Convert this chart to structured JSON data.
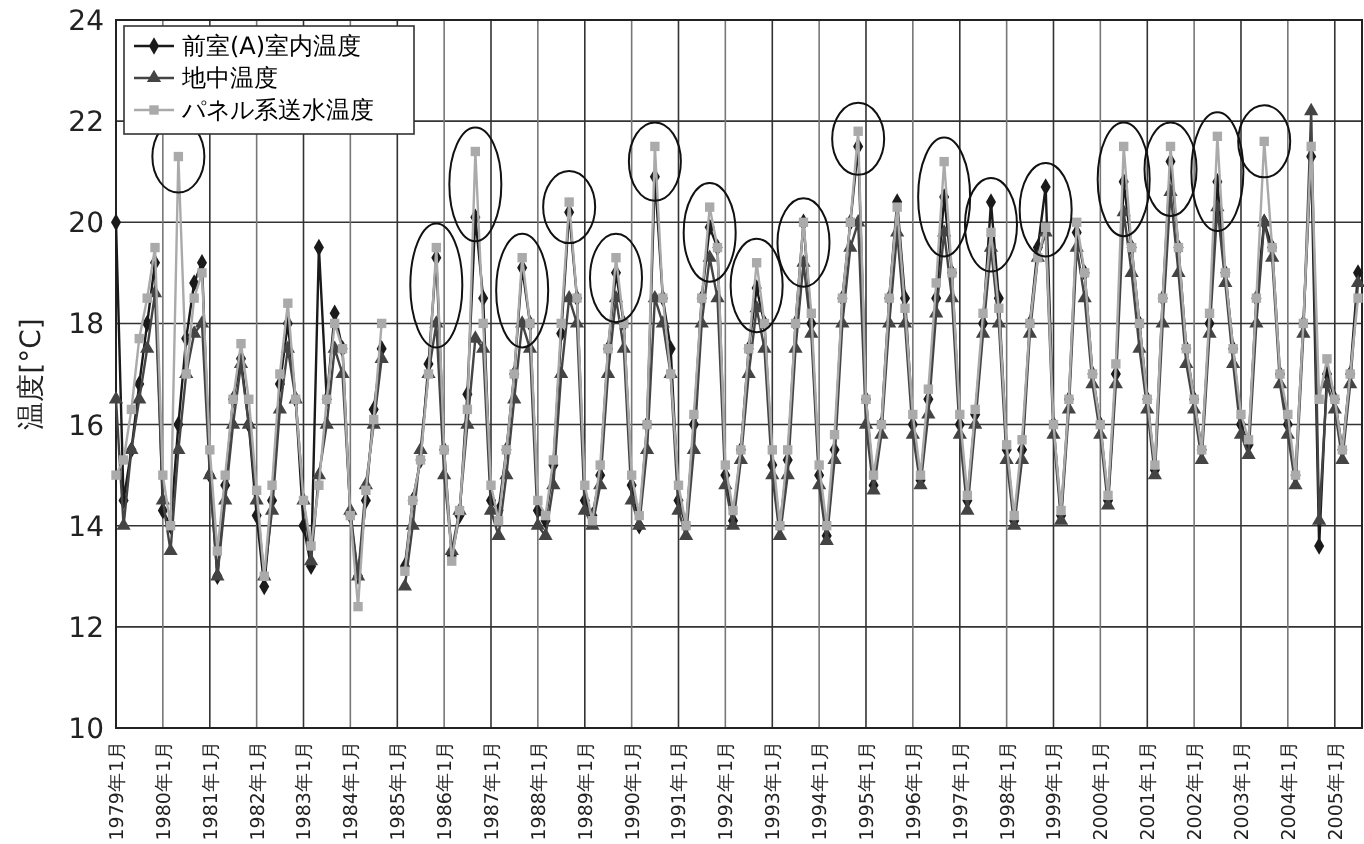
{
  "chart_data": {
    "type": "line",
    "ylabel": "温度[°C]",
    "ylim": [
      10,
      24
    ],
    "yticks": [
      10,
      12,
      14,
      16,
      18,
      20,
      22,
      24
    ],
    "xlim": [
      "1979-01",
      "2005-08"
    ],
    "xticks": [
      {
        "value": "1979-01",
        "label": "1979年1月"
      },
      {
        "value": "1980-01",
        "label": "1980年1月"
      },
      {
        "value": "1981-01",
        "label": "1981年1月"
      },
      {
        "value": "1982-01",
        "label": "1982年1月"
      },
      {
        "value": "1983-01",
        "label": "1983年1月"
      },
      {
        "value": "1984-01",
        "label": "1984年1月"
      },
      {
        "value": "1985-01",
        "label": "1985年1月"
      },
      {
        "value": "1986-01",
        "label": "1986年1月"
      },
      {
        "value": "1987-01",
        "label": "1987年1月"
      },
      {
        "value": "1988-01",
        "label": "1988年1月"
      },
      {
        "value": "1989-01",
        "label": "1989年1月"
      },
      {
        "value": "1990-01",
        "label": "1990年1月"
      },
      {
        "value": "1991-01",
        "label": "1991年1月"
      },
      {
        "value": "1992-01",
        "label": "1992年1月"
      },
      {
        "value": "1993-01",
        "label": "1993年1月"
      },
      {
        "value": "1994-01",
        "label": "1994年1月"
      },
      {
        "value": "1995-01",
        "label": "1995年1月"
      },
      {
        "value": "1996-01",
        "label": "1996年1月"
      },
      {
        "value": "1997-01",
        "label": "1997年1月"
      },
      {
        "value": "1998-01",
        "label": "1998年1月"
      },
      {
        "value": "1999-01",
        "label": "1999年1月"
      },
      {
        "value": "2000-01",
        "label": "2000年1月"
      },
      {
        "value": "2001-01",
        "label": "2001年1月"
      },
      {
        "value": "2002-01",
        "label": "2002年1月"
      },
      {
        "value": "2003-01",
        "label": "2003年1月"
      },
      {
        "value": "2004-01",
        "label": "2004年1月"
      },
      {
        "value": "2005-01",
        "label": "2005年1月"
      }
    ],
    "grid": true,
    "legend": "top left",
    "line_style": "solid",
    "x": [
      "1979-01",
      "1979-03",
      "1979-05",
      "1979-07",
      "1979-09",
      "1979-11",
      "1980-01",
      "1980-03",
      "1980-05",
      "1980-07",
      "1980-09",
      "1980-11",
      "1981-01",
      "1981-03",
      "1981-05",
      "1981-07",
      "1981-09",
      "1981-11",
      "1982-01",
      "1982-03",
      "1982-05",
      "1982-07",
      "1982-09",
      "1982-11",
      "1983-01",
      "1983-03",
      "1983-05",
      "1983-07",
      "1983-09",
      "1983-11",
      "1984-01",
      "1984-03",
      "1984-05",
      "1984-07",
      "1984-09",
      "1984-11",
      "1985-01",
      "1985-03",
      "1985-05",
      "1985-07",
      "1985-09",
      "1985-11",
      "1986-01",
      "1986-03",
      "1986-05",
      "1986-07",
      "1986-09",
      "1986-11",
      "1987-01",
      "1987-03",
      "1987-05",
      "1987-07",
      "1987-09",
      "1987-11",
      "1988-01",
      "1988-03",
      "1988-05",
      "1988-07",
      "1988-09",
      "1988-11",
      "1989-01",
      "1989-03",
      "1989-05",
      "1989-07",
      "1989-09",
      "1989-11",
      "1990-01",
      "1990-03",
      "1990-05",
      "1990-07",
      "1990-09",
      "1990-11",
      "1991-01",
      "1991-03",
      "1991-05",
      "1991-07",
      "1991-09",
      "1991-11",
      "1992-01",
      "1992-03",
      "1992-05",
      "1992-07",
      "1992-09",
      "1992-11",
      "1993-01",
      "1993-03",
      "1993-05",
      "1993-07",
      "1993-09",
      "1993-11",
      "1994-01",
      "1994-03",
      "1994-05",
      "1994-07",
      "1994-09",
      "1994-11",
      "1995-01",
      "1995-03",
      "1995-05",
      "1995-07",
      "1995-09",
      "1995-11",
      "1996-01",
      "1996-03",
      "1996-05",
      "1996-07",
      "1996-09",
      "1996-11",
      "1997-01",
      "1997-03",
      "1997-05",
      "1997-07",
      "1997-09",
      "1997-11",
      "1998-01",
      "1998-03",
      "1998-05",
      "1998-07",
      "1998-09",
      "1998-11",
      "1999-01",
      "1999-03",
      "1999-05",
      "1999-07",
      "1999-09",
      "1999-11",
      "2000-01",
      "2000-03",
      "2000-05",
      "2000-07",
      "2000-09",
      "2000-11",
      "2001-01",
      "2001-03",
      "2001-05",
      "2001-07",
      "2001-09",
      "2001-11",
      "2002-01",
      "2002-03",
      "2002-05",
      "2002-07",
      "2002-09",
      "2002-11",
      "2003-01",
      "2003-03",
      "2003-05",
      "2003-07",
      "2003-09",
      "2003-11",
      "2004-01",
      "2004-03",
      "2004-05",
      "2004-07",
      "2004-09",
      "2004-11",
      "2005-01",
      "2005-03",
      "2005-05",
      "2005-07"
    ],
    "series": [
      {
        "name": "前室(A)室内温度",
        "color": "#1a1a1a",
        "marker": "diamond",
        "values": [
          20.0,
          14.5,
          15.5,
          16.8,
          18.0,
          19.2,
          14.3,
          14.0,
          16.0,
          17.7,
          18.8,
          19.2,
          15.0,
          13.0,
          14.8,
          16.5,
          17.3,
          16.0,
          14.2,
          12.8,
          14.5,
          16.8,
          18.0,
          16.5,
          14.0,
          13.2,
          19.5,
          16.5,
          18.2,
          17.5,
          14.2,
          13.0,
          14.5,
          16.3,
          17.5,
          null,
          null,
          13.2,
          14.5,
          15.3,
          17.2,
          19.3,
          15.5,
          13.4,
          14.2,
          16.6,
          20.1,
          18.5,
          14.5,
          14.3,
          15.5,
          17.0,
          19.1,
          18.0,
          14.3,
          14.1,
          15.2,
          17.8,
          20.2,
          18.5,
          14.5,
          14.2,
          15.0,
          17.5,
          19.0,
          18.0,
          14.8,
          14.0,
          16.0,
          20.9,
          18.5,
          17.5,
          14.5,
          14.0,
          16.0,
          18.5,
          19.9,
          19.5,
          15.0,
          14.1,
          15.5,
          17.5,
          18.7,
          18.0,
          15.2,
          14.0,
          15.3,
          18.0,
          20.0,
          18.0,
          15.0,
          13.8,
          15.5,
          18.5,
          20.0,
          21.5,
          16.5,
          14.8,
          16.0,
          18.5,
          20.4,
          18.5,
          16.0,
          14.9,
          16.5,
          18.5,
          20.5,
          19.0,
          16.0,
          14.5,
          16.2,
          18.0,
          20.4,
          18.5,
          15.5,
          14.1,
          15.5,
          18.0,
          19.5,
          20.7,
          16.0,
          14.2,
          16.5,
          19.8,
          19.0,
          17.0,
          16.0,
          14.5,
          17.0,
          20.8,
          19.5,
          18.0,
          16.5,
          15.1,
          18.5,
          21.2,
          19.5,
          17.5,
          16.5,
          15.5,
          18.0,
          20.8,
          19.0,
          17.5,
          16.0,
          15.6,
          18.5,
          20.0,
          19.5,
          17.0,
          16.0,
          15.0,
          18.0,
          21.3,
          13.6,
          17.0,
          16.5,
          15.5,
          17.0,
          19.0
        ]
      },
      {
        "name": "地中温度",
        "color": "#444444",
        "marker": "triangle",
        "values": [
          16.5,
          14.0,
          15.5,
          16.5,
          17.5,
          18.6,
          14.5,
          13.5,
          15.5,
          17.0,
          17.8,
          18.0,
          15.0,
          13.0,
          14.5,
          16.0,
          17.2,
          16.0,
          14.5,
          13.0,
          14.3,
          16.3,
          17.5,
          16.5,
          14.5,
          13.3,
          15.0,
          16.0,
          17.5,
          17.0,
          14.3,
          13.0,
          14.8,
          16.0,
          17.3,
          null,
          null,
          12.8,
          14.0,
          15.5,
          17.0,
          18.0,
          15.0,
          13.5,
          14.3,
          16.0,
          17.7,
          17.5,
          14.3,
          13.8,
          15.0,
          16.5,
          18.0,
          17.5,
          14.0,
          13.8,
          14.8,
          17.0,
          18.5,
          18.0,
          14.3,
          14.0,
          14.8,
          17.0,
          18.5,
          17.5,
          14.5,
          14.0,
          15.5,
          18.5,
          18.0,
          17.0,
          14.3,
          13.8,
          15.5,
          18.0,
          19.3,
          18.5,
          14.8,
          14.0,
          15.3,
          17.0,
          18.3,
          17.5,
          15.0,
          13.8,
          15.0,
          17.5,
          19.2,
          17.8,
          14.8,
          13.7,
          15.3,
          18.0,
          19.5,
          20.0,
          16.0,
          14.7,
          15.8,
          18.0,
          19.8,
          18.0,
          15.8,
          14.8,
          16.2,
          18.2,
          19.8,
          18.5,
          15.8,
          14.3,
          16.0,
          17.8,
          19.5,
          18.0,
          15.3,
          14.0,
          15.3,
          17.8,
          19.3,
          19.8,
          15.8,
          14.1,
          16.3,
          19.5,
          18.5,
          16.8,
          15.8,
          14.4,
          16.8,
          20.2,
          19.0,
          17.5,
          16.3,
          15.0,
          18.0,
          20.6,
          19.0,
          17.2,
          16.3,
          15.3,
          17.8,
          20.3,
          18.8,
          17.2,
          15.8,
          15.4,
          18.0,
          20.0,
          19.3,
          16.8,
          15.8,
          14.8,
          17.8,
          22.2,
          14.1,
          16.8,
          16.3,
          15.3,
          16.8,
          18.8
        ]
      },
      {
        "name": "パネル系送水温度",
        "color": "#aaaaaa",
        "marker": "square",
        "values": [
          15.0,
          15.3,
          16.3,
          17.7,
          18.5,
          19.5,
          15.0,
          14.0,
          21.3,
          17.0,
          18.5,
          19.0,
          15.5,
          13.5,
          15.0,
          16.5,
          17.6,
          16.5,
          14.7,
          13.0,
          14.8,
          17.0,
          18.4,
          16.5,
          14.5,
          13.6,
          14.8,
          16.5,
          18.0,
          17.5,
          14.2,
          12.4,
          14.7,
          16.1,
          18.0,
          null,
          null,
          13.1,
          14.5,
          15.3,
          17.0,
          19.5,
          15.5,
          13.3,
          14.3,
          16.3,
          21.4,
          18.0,
          14.8,
          14.1,
          15.5,
          17.0,
          19.3,
          18.0,
          14.5,
          14.2,
          15.3,
          18.0,
          20.4,
          18.5,
          14.8,
          14.1,
          15.2,
          17.5,
          19.3,
          18.0,
          15.0,
          14.2,
          16.0,
          21.5,
          18.5,
          17.0,
          14.8,
          14.0,
          16.2,
          18.5,
          20.3,
          19.5,
          15.2,
          14.3,
          15.5,
          17.5,
          19.2,
          18.0,
          15.5,
          14.0,
          15.5,
          18.0,
          20.0,
          18.2,
          15.2,
          14.0,
          15.8,
          18.5,
          20.0,
          21.8,
          16.5,
          15.0,
          16.0,
          18.5,
          20.3,
          18.3,
          16.2,
          15.0,
          16.7,
          18.8,
          21.2,
          19.0,
          16.2,
          14.6,
          16.3,
          18.2,
          19.8,
          18.3,
          15.6,
          14.2,
          15.7,
          18.0,
          19.3,
          19.9,
          16.0,
          14.3,
          16.5,
          20.0,
          19.0,
          17.0,
          16.0,
          14.6,
          17.2,
          21.5,
          19.5,
          18.0,
          16.5,
          15.2,
          18.5,
          21.5,
          19.5,
          17.5,
          16.5,
          15.5,
          18.2,
          21.7,
          19.0,
          17.5,
          16.2,
          15.7,
          18.5,
          21.6,
          19.5,
          17.0,
          16.2,
          15.0,
          18.0,
          21.5,
          16.5,
          17.3,
          16.5,
          15.5,
          17.0,
          18.5
        ]
      }
    ]
  }
}
